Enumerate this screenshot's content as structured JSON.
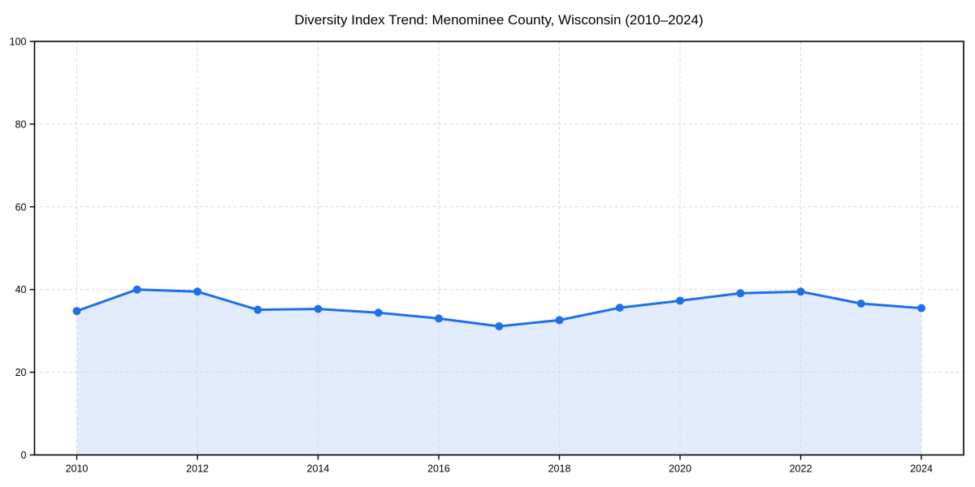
{
  "chart_data": {
    "type": "area",
    "title": "Diversity Index Trend: Menominee County, Wisconsin (2010–2024)",
    "xlabel": "",
    "ylabel": "",
    "x": [
      2010,
      2011,
      2012,
      2013,
      2014,
      2015,
      2016,
      2017,
      2018,
      2019,
      2020,
      2021,
      2022,
      2023,
      2024
    ],
    "series": [
      {
        "name": "Diversity Index",
        "values": [
          34.8,
          40.0,
          39.5,
          35.1,
          35.3,
          34.4,
          33.0,
          31.1,
          32.6,
          35.6,
          37.3,
          39.1,
          39.5,
          36.6,
          35.5
        ]
      }
    ],
    "xlim": [
      2009.3,
      2024.7
    ],
    "ylim": [
      0,
      100
    ],
    "xticks": [
      2010,
      2012,
      2014,
      2016,
      2018,
      2020,
      2022,
      2024
    ],
    "yticks": [
      0,
      20,
      40,
      60,
      80,
      100
    ],
    "grid": "dashed-both-axes",
    "legend": "none",
    "marker": "circle",
    "colors": {
      "line": "#1f6fe8",
      "marker": "#1f6fe8",
      "fill": "rgba(31,111,232,0.13)",
      "grid": "#d9d9d9",
      "spine": "#000000",
      "text": "#000000",
      "background": "#ffffff"
    }
  }
}
